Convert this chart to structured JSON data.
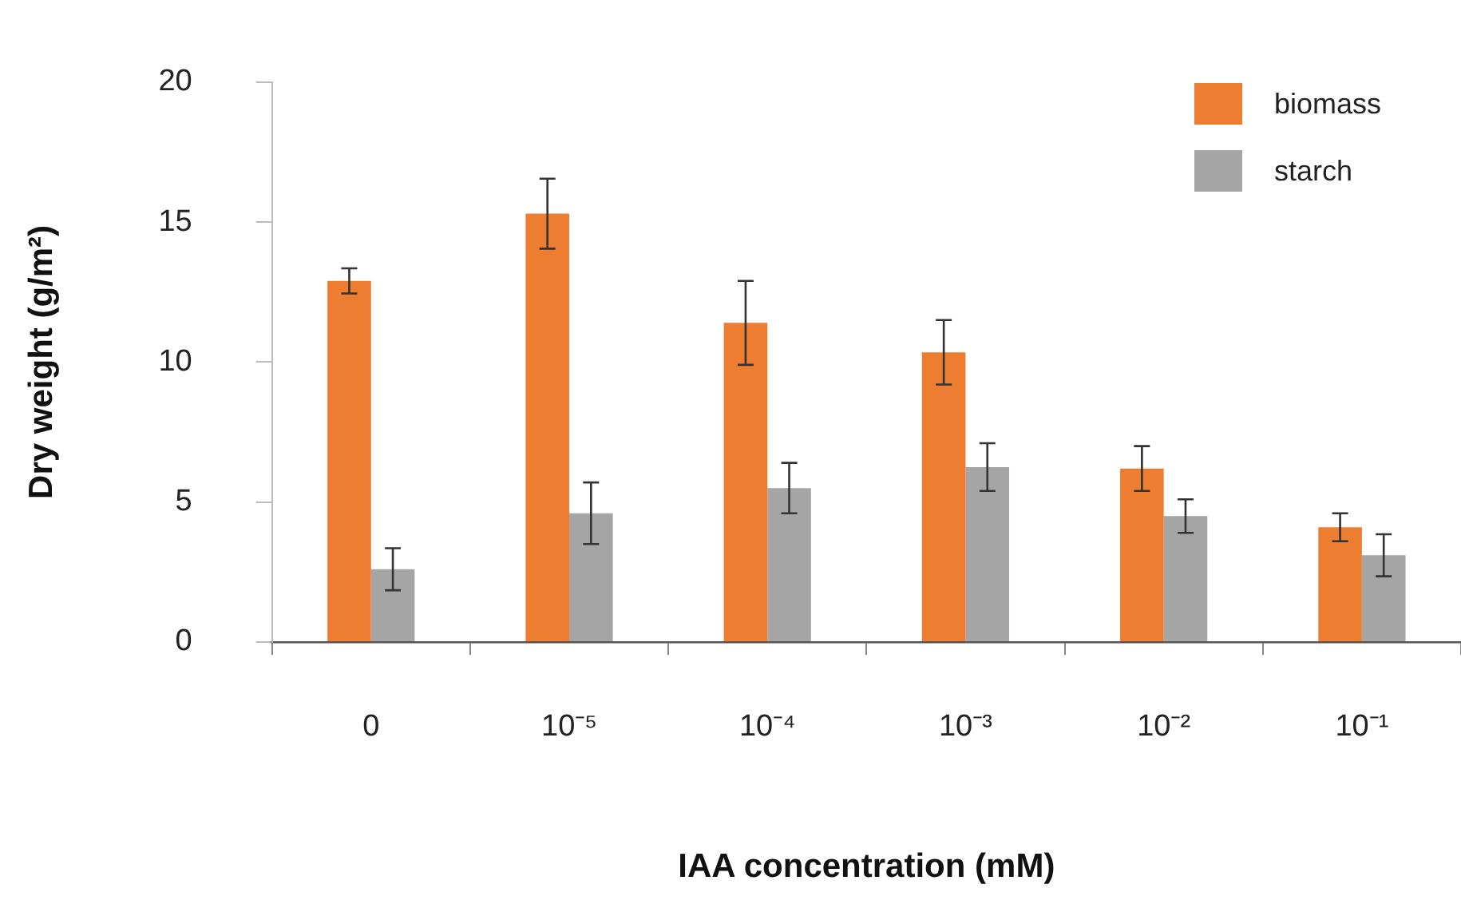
{
  "chart_data": {
    "type": "bar",
    "xlabel": "IAA concentration (mM)",
    "ylabel": "Dry weight (g/m²)",
    "categories": [
      "0",
      "10⁻⁵",
      "10⁻⁴",
      "10⁻³",
      "10⁻²",
      "10⁻¹"
    ],
    "series": [
      {
        "name": "biomass",
        "color": "#ed7d31",
        "values": [
          12.9,
          15.3,
          11.4,
          10.35,
          6.2,
          4.1
        ],
        "errors": [
          0.45,
          1.25,
          1.5,
          1.15,
          0.8,
          0.5
        ]
      },
      {
        "name": "starch",
        "color": "#a5a5a5",
        "values": [
          2.6,
          4.6,
          5.5,
          6.25,
          4.5,
          3.1
        ],
        "errors": [
          0.75,
          1.1,
          0.9,
          0.85,
          0.6,
          0.75
        ]
      }
    ],
    "ylim": [
      0,
      20
    ],
    "yticks": [
      0,
      5,
      10,
      15,
      20
    ],
    "grid": false,
    "legend": "top right"
  }
}
